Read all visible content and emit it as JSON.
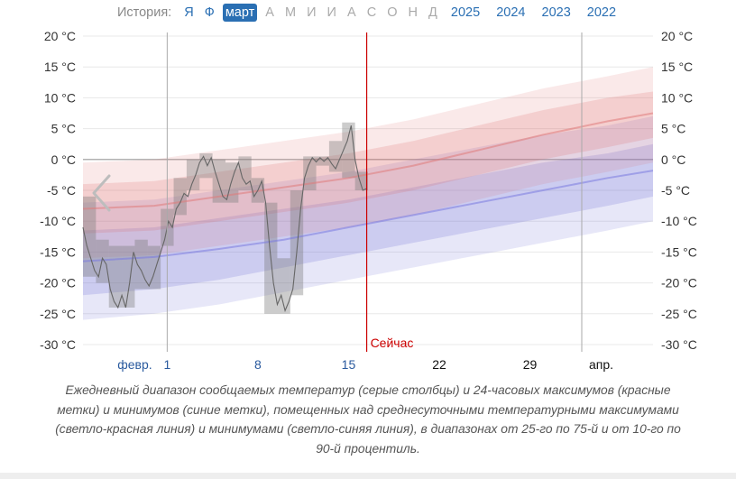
{
  "nav": {
    "history_label": "История:",
    "months": [
      {
        "label": "Я",
        "state": "link"
      },
      {
        "label": "Ф",
        "state": "link"
      },
      {
        "label": "март",
        "state": "selected"
      },
      {
        "label": "А",
        "state": "inactive"
      },
      {
        "label": "М",
        "state": "inactive"
      },
      {
        "label": "И",
        "state": "inactive"
      },
      {
        "label": "И",
        "state": "inactive"
      },
      {
        "label": "А",
        "state": "inactive"
      },
      {
        "label": "С",
        "state": "inactive"
      },
      {
        "label": "О",
        "state": "inactive"
      },
      {
        "label": "Н",
        "state": "inactive"
      },
      {
        "label": "Д",
        "state": "inactive"
      }
    ],
    "years": [
      "2025",
      "2024",
      "2023",
      "2022"
    ]
  },
  "chart_data": {
    "type": "area",
    "y_unit": "°C",
    "ylim": [
      -30,
      20
    ],
    "y_ticks": [
      "20 °C",
      "15 °C",
      "10 °C",
      "5 °C",
      "0 °C",
      "-5 °C",
      "-10 °C",
      "-15 °C",
      "-20 °C",
      "-25 °C",
      "-30 °C"
    ],
    "x_ticks": [
      {
        "label": "февр.",
        "day": -1.5,
        "style": "month"
      },
      {
        "label": "1",
        "day": 1,
        "style": "blue"
      },
      {
        "label": "8",
        "day": 8,
        "style": "blue"
      },
      {
        "label": "15",
        "day": 15,
        "style": "blue"
      },
      {
        "label": "22",
        "day": 22,
        "style": "black"
      },
      {
        "label": "29",
        "day": 29,
        "style": "black"
      },
      {
        "label": "апр.",
        "day": 34.5,
        "style": "month-black"
      }
    ],
    "xlim": [
      -5.5,
      38.5
    ],
    "vlines": [
      1,
      33
    ],
    "now": {
      "day": 16.4,
      "label": "Сейчас"
    },
    "left_arrow_icon": "chevron-left-icon",
    "colors": {
      "high": "#e07a7a",
      "low": "#7a7ae0",
      "now": "#cc0000",
      "observed": "#666666"
    },
    "normals": {
      "days": [
        -5.5,
        0,
        5,
        10,
        15,
        20,
        25,
        30,
        35,
        38.5
      ],
      "high_avg": [
        -8,
        -7.5,
        -6,
        -4.5,
        -3,
        -1,
        1.5,
        4,
        6.2,
        7.5
      ],
      "high_p25": [
        -12,
        -11.5,
        -10,
        -8.5,
        -7,
        -5,
        -2.5,
        0,
        2,
        3.5
      ],
      "high_p75": [
        -4,
        -3.5,
        -2,
        -0.5,
        1,
        3,
        5.5,
        8,
        10,
        11
      ],
      "high_p10": [
        -16,
        -15.5,
        -14,
        -12.5,
        -11,
        -9,
        -6.5,
        -4,
        -2,
        -0.5
      ],
      "high_p90": [
        -0.5,
        0,
        1.5,
        3,
        4.5,
        6.5,
        9,
        11.5,
        13.5,
        15
      ],
      "low_avg": [
        -16.5,
        -15.8,
        -14.5,
        -13,
        -11,
        -9,
        -7,
        -5,
        -3,
        -1.8
      ],
      "low_p25": [
        -22,
        -21,
        -19.5,
        -17.5,
        -15.5,
        -13.5,
        -11.5,
        -9.5,
        -7.5,
        -6
      ],
      "low_p75": [
        -11.5,
        -11,
        -9.5,
        -8,
        -6.5,
        -4.5,
        -2.5,
        -0.5,
        1,
        2.5
      ],
      "low_p10": [
        -26,
        -25,
        -23.5,
        -21.5,
        -19.5,
        -17.5,
        -15.5,
        -13.5,
        -11.5,
        -10
      ],
      "low_p90": [
        -7,
        -6.5,
        -5,
        -3.5,
        -2,
        0,
        2,
        4,
        5.5,
        7
      ]
    },
    "daily_ranges": [
      {
        "day": -5,
        "low": -19,
        "high": -6
      },
      {
        "day": -4,
        "low": -20,
        "high": -13
      },
      {
        "day": -3,
        "low": -24,
        "high": -14
      },
      {
        "day": -2,
        "low": -24,
        "high": -14
      },
      {
        "day": -1,
        "low": -21,
        "high": -13
      },
      {
        "day": 0,
        "low": -21,
        "high": -14
      },
      {
        "day": 1,
        "low": -14,
        "high": -8
      },
      {
        "day": 2,
        "low": -9,
        "high": -3
      },
      {
        "day": 3,
        "low": -5,
        "high": 0
      },
      {
        "day": 4,
        "low": -3,
        "high": 1
      },
      {
        "day": 5,
        "low": -7,
        "high": 0
      },
      {
        "day": 6,
        "low": -7,
        "high": -0.5
      },
      {
        "day": 7,
        "low": -5,
        "high": 0.5
      },
      {
        "day": 8,
        "low": -7,
        "high": -3
      },
      {
        "day": 9,
        "low": -25,
        "high": -7
      },
      {
        "day": 10,
        "low": -25,
        "high": -16
      },
      {
        "day": 11,
        "low": -22,
        "high": -5
      },
      {
        "day": 12,
        "low": -5,
        "high": 0.5
      },
      {
        "day": 13,
        "low": -1,
        "high": 0.5
      },
      {
        "day": 14,
        "low": -2,
        "high": 3
      },
      {
        "day": 15,
        "low": -3,
        "high": 6
      },
      {
        "day": 16,
        "low": -5,
        "high": -2
      }
    ],
    "observed_temps": [
      [
        -5.5,
        -11
      ],
      [
        -5.2,
        -14
      ],
      [
        -4.9,
        -16
      ],
      [
        -4.6,
        -18
      ],
      [
        -4.3,
        -19
      ],
      [
        -4,
        -16
      ],
      [
        -3.7,
        -17
      ],
      [
        -3.4,
        -21
      ],
      [
        -3.1,
        -23
      ],
      [
        -2.8,
        -24
      ],
      [
        -2.5,
        -22
      ],
      [
        -2.2,
        -24
      ],
      [
        -1.9,
        -20
      ],
      [
        -1.6,
        -15
      ],
      [
        -1.3,
        -17
      ],
      [
        -1,
        -18
      ],
      [
        -0.7,
        -19.5
      ],
      [
        -0.4,
        -20.5
      ],
      [
        -0.1,
        -19
      ],
      [
        0.2,
        -17
      ],
      [
        0.5,
        -15
      ],
      [
        0.8,
        -13
      ],
      [
        1.1,
        -10
      ],
      [
        1.4,
        -11
      ],
      [
        1.7,
        -8
      ],
      [
        2,
        -7
      ],
      [
        2.3,
        -5.5
      ],
      [
        2.6,
        -6
      ],
      [
        2.9,
        -4
      ],
      [
        3.2,
        -2.5
      ],
      [
        3.5,
        -0.5
      ],
      [
        3.8,
        0.5
      ],
      [
        4.1,
        -1
      ],
      [
        4.4,
        0.3
      ],
      [
        4.7,
        -2
      ],
      [
        5,
        -4
      ],
      [
        5.3,
        -6
      ],
      [
        5.6,
        -6.5
      ],
      [
        5.9,
        -4
      ],
      [
        6.2,
        -2
      ],
      [
        6.5,
        -0.5
      ],
      [
        6.8,
        -3
      ],
      [
        7.1,
        -4
      ],
      [
        7.4,
        -3.5
      ],
      [
        7.7,
        -6
      ],
      [
        8,
        -5
      ],
      [
        8.3,
        -3.5
      ],
      [
        8.6,
        -7
      ],
      [
        8.9,
        -14
      ],
      [
        9.2,
        -20
      ],
      [
        9.5,
        -23.5
      ],
      [
        9.8,
        -22
      ],
      [
        10.1,
        -24.5
      ],
      [
        10.4,
        -23
      ],
      [
        10.7,
        -21
      ],
      [
        11,
        -15
      ],
      [
        11.3,
        -8
      ],
      [
        11.6,
        -3
      ],
      [
        11.9,
        -1
      ],
      [
        12.2,
        0.3
      ],
      [
        12.5,
        -0.4
      ],
      [
        12.8,
        0.3
      ],
      [
        13.1,
        -0.3
      ],
      [
        13.4,
        0.3
      ],
      [
        13.7,
        -0.7
      ],
      [
        14,
        -1.5
      ],
      [
        14.3,
        0
      ],
      [
        14.6,
        1.5
      ],
      [
        14.9,
        3
      ],
      [
        15.2,
        5.5
      ],
      [
        15.5,
        0
      ],
      [
        15.8,
        -3
      ],
      [
        16.1,
        -5
      ],
      [
        16.4,
        -4.7
      ]
    ]
  },
  "caption": "Ежедневный диапазон сообщаемых температур (серые столбцы) и 24-часовых максимумов (красные метки) и минимумов (синие метки), помещенных над среднесуточными температурными максимумами (светло-красная линия) и минимумами (светло-синяя линия), в диапазонах от 25-го по 75-й и от 10-го по 90-й процентиль."
}
